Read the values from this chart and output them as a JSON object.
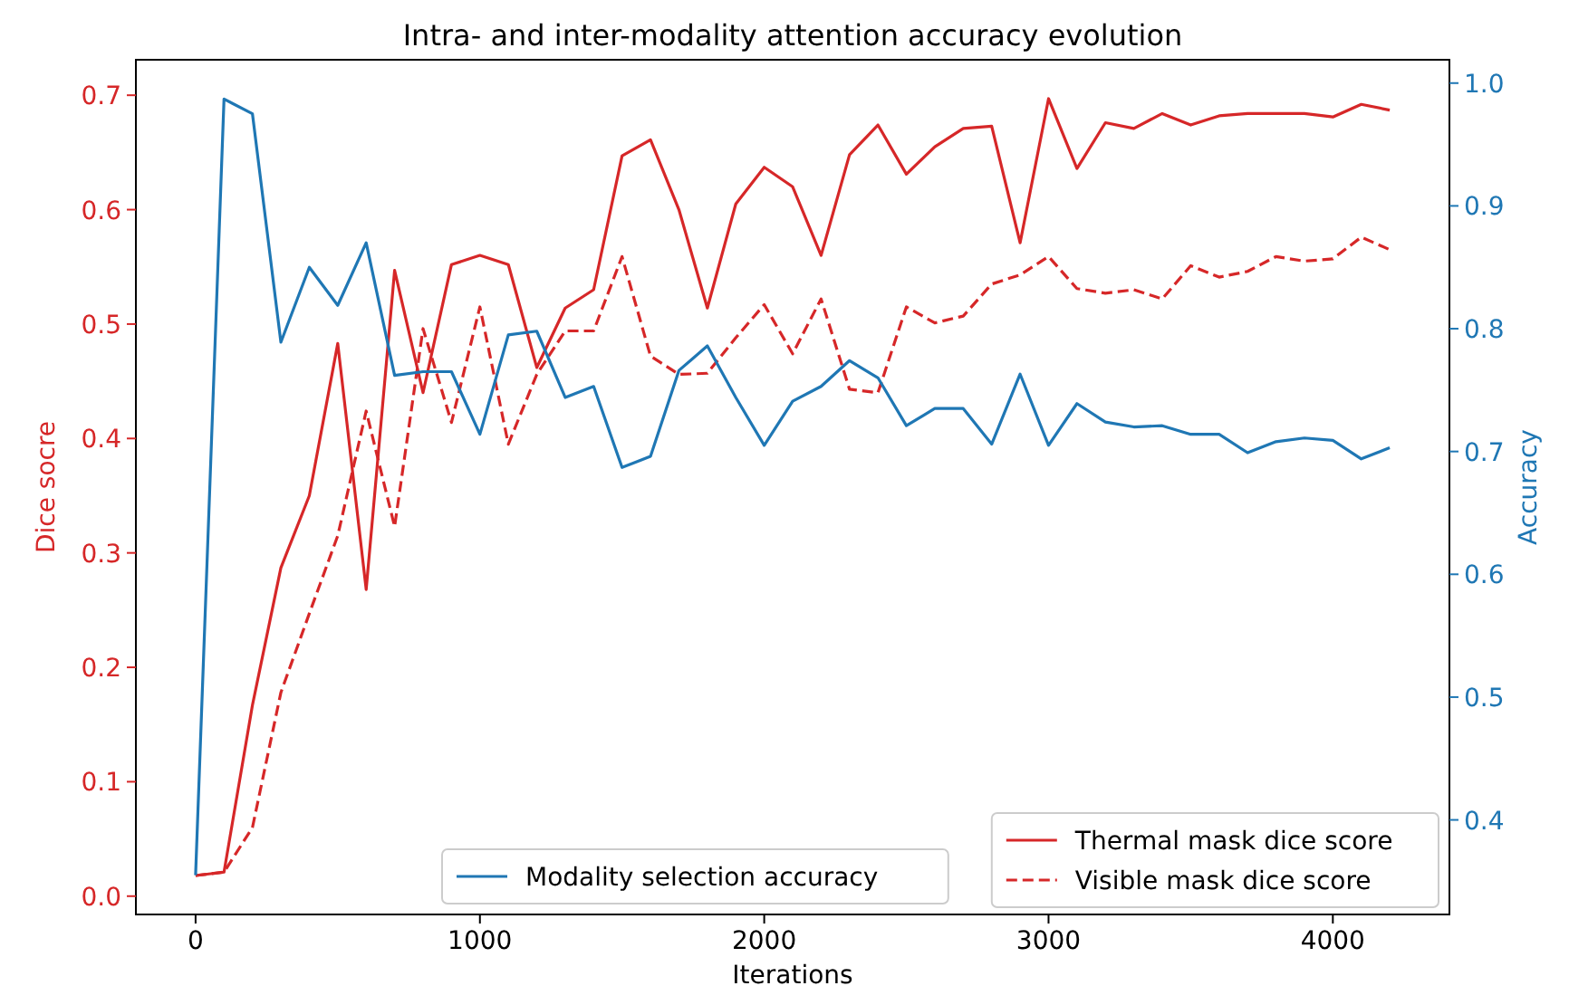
{
  "chart_data": {
    "type": "line",
    "title": "Intra- and inter-modality attention accuracy evolution",
    "xlabel": "Iterations",
    "ylabel": "Dice socre",
    "y2label": "Accuracy",
    "x": [
      0,
      100,
      200,
      300,
      400,
      500,
      600,
      700,
      800,
      900,
      1000,
      1100,
      1200,
      1300,
      1400,
      1500,
      1600,
      1700,
      1800,
      1900,
      2000,
      2100,
      2200,
      2300,
      2400,
      2500,
      2600,
      2700,
      2800,
      2900,
      3000,
      3100,
      3200,
      3300,
      3400,
      3500,
      3600,
      3700,
      3800,
      3900,
      4000,
      4100,
      4200
    ],
    "series": [
      {
        "name": "Thermal mask dice score",
        "color": "#d62728",
        "line_style": "solid",
        "values": [
          0.018,
          0.021,
          0.167,
          0.287,
          0.35,
          0.483,
          0.268,
          0.547,
          0.44,
          0.552,
          0.56,
          0.552,
          0.462,
          0.514,
          0.53,
          0.647,
          0.661,
          0.6,
          0.514,
          0.605,
          0.637,
          0.62,
          0.56,
          0.648,
          0.674,
          0.631,
          0.655,
          0.671,
          0.673,
          0.571,
          0.697,
          0.636,
          0.676,
          0.671,
          0.684,
          0.674,
          0.682,
          0.684,
          0.684,
          0.684,
          0.681,
          0.692,
          0.687
        ]
      },
      {
        "name": "Visible mask dice score",
        "color": "#d62728",
        "line_style": "dashed",
        "values": [
          0.018,
          0.021,
          0.06,
          0.178,
          0.247,
          0.315,
          0.424,
          0.323,
          0.496,
          0.414,
          0.515,
          0.395,
          0.456,
          0.494,
          0.494,
          0.559,
          0.472,
          0.456,
          0.457,
          0.488,
          0.517,
          0.474,
          0.522,
          0.443,
          0.44,
          0.515,
          0.501,
          0.507,
          0.535,
          0.543,
          0.559,
          0.531,
          0.527,
          0.53,
          0.522,
          0.551,
          0.541,
          0.546,
          0.559,
          0.555,
          0.557,
          0.576,
          0.565
        ]
      },
      {
        "name": "Modality selection accuracy",
        "color": "#1f77b4",
        "line_style": "solid",
        "axis": "y2",
        "values": [
          0.355,
          0.987,
          0.975,
          0.789,
          0.85,
          0.819,
          0.87,
          0.762,
          0.765,
          0.765,
          0.714,
          0.795,
          0.798,
          0.744,
          0.753,
          0.687,
          0.696,
          0.766,
          0.786,
          0.744,
          0.705,
          0.741,
          0.753,
          0.774,
          0.76,
          0.721,
          0.735,
          0.735,
          0.706,
          0.763,
          0.705,
          0.739,
          0.724,
          0.72,
          0.721,
          0.714,
          0.714,
          0.699,
          0.708,
          0.711,
          0.709,
          0.694,
          0.703
        ]
      }
    ],
    "xlim": [
      -210,
      4410
    ],
    "xticks": [
      0,
      1000,
      2000,
      3000,
      4000
    ],
    "ylim": [
      -0.016,
      0.731
    ],
    "yticks": [
      {
        "value": 0,
        "label": "0.0"
      },
      0.1,
      0.2,
      0.3,
      0.4,
      0.5,
      0.6,
      0.7
    ],
    "y2lim": [
      0.323,
      1.019
    ],
    "y2ticks": [
      0.4,
      0.5,
      0.6,
      0.7,
      0.8,
      0.9,
      {
        "value": 1,
        "label": "1.0"
      }
    ],
    "grid": false,
    "legend": "bottom right",
    "marker": "none"
  }
}
